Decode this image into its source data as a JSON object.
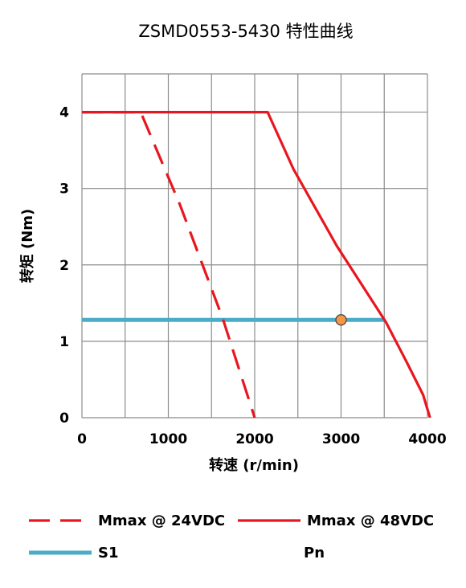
{
  "chart_data": {
    "type": "line",
    "title": "ZSMD0553-5430 特性曲线",
    "xlabel": "转速 (r/min)",
    "ylabel": "转矩 (Nm)",
    "xlim": [
      0,
      4000
    ],
    "ylim": [
      0,
      4.5
    ],
    "x_ticks": [
      0,
      1000,
      2000,
      3000,
      4000
    ],
    "y_ticks": [
      0,
      1,
      2,
      3,
      4
    ],
    "x_tick_labels": [
      "0",
      "1000",
      "2000",
      "3000",
      "4000"
    ],
    "y_tick_labels": [
      "0",
      "1",
      "2",
      "3",
      "4"
    ],
    "x_grid_step": 500,
    "grid": true,
    "legend_position": "bottom",
    "series": [
      {
        "name": "Mmax @ 24VDC",
        "style": "dashed",
        "color": "#e8161e",
        "points": [
          [
            0,
            4.0
          ],
          [
            680,
            4.0
          ],
          [
            1130,
            2.8
          ],
          [
            1630,
            1.3
          ],
          [
            2000,
            0
          ]
        ]
      },
      {
        "name": "Mmax @ 48VDC",
        "style": "solid",
        "color": "#e8161e",
        "points": [
          [
            0,
            4.0
          ],
          [
            2150,
            4.0
          ],
          [
            2450,
            3.25
          ],
          [
            2950,
            2.25
          ],
          [
            3520,
            1.25
          ],
          [
            3750,
            0.75
          ],
          [
            3950,
            0.3
          ],
          [
            4030,
            0
          ]
        ]
      },
      {
        "name": "S1",
        "style": "solid",
        "color": "#4bacc6",
        "points": [
          [
            0,
            1.28
          ],
          [
            3500,
            1.28
          ]
        ]
      },
      {
        "name": "Pn",
        "style": "marker",
        "color": "#f79646",
        "points": [
          [
            3000,
            1.28
          ]
        ]
      }
    ]
  }
}
